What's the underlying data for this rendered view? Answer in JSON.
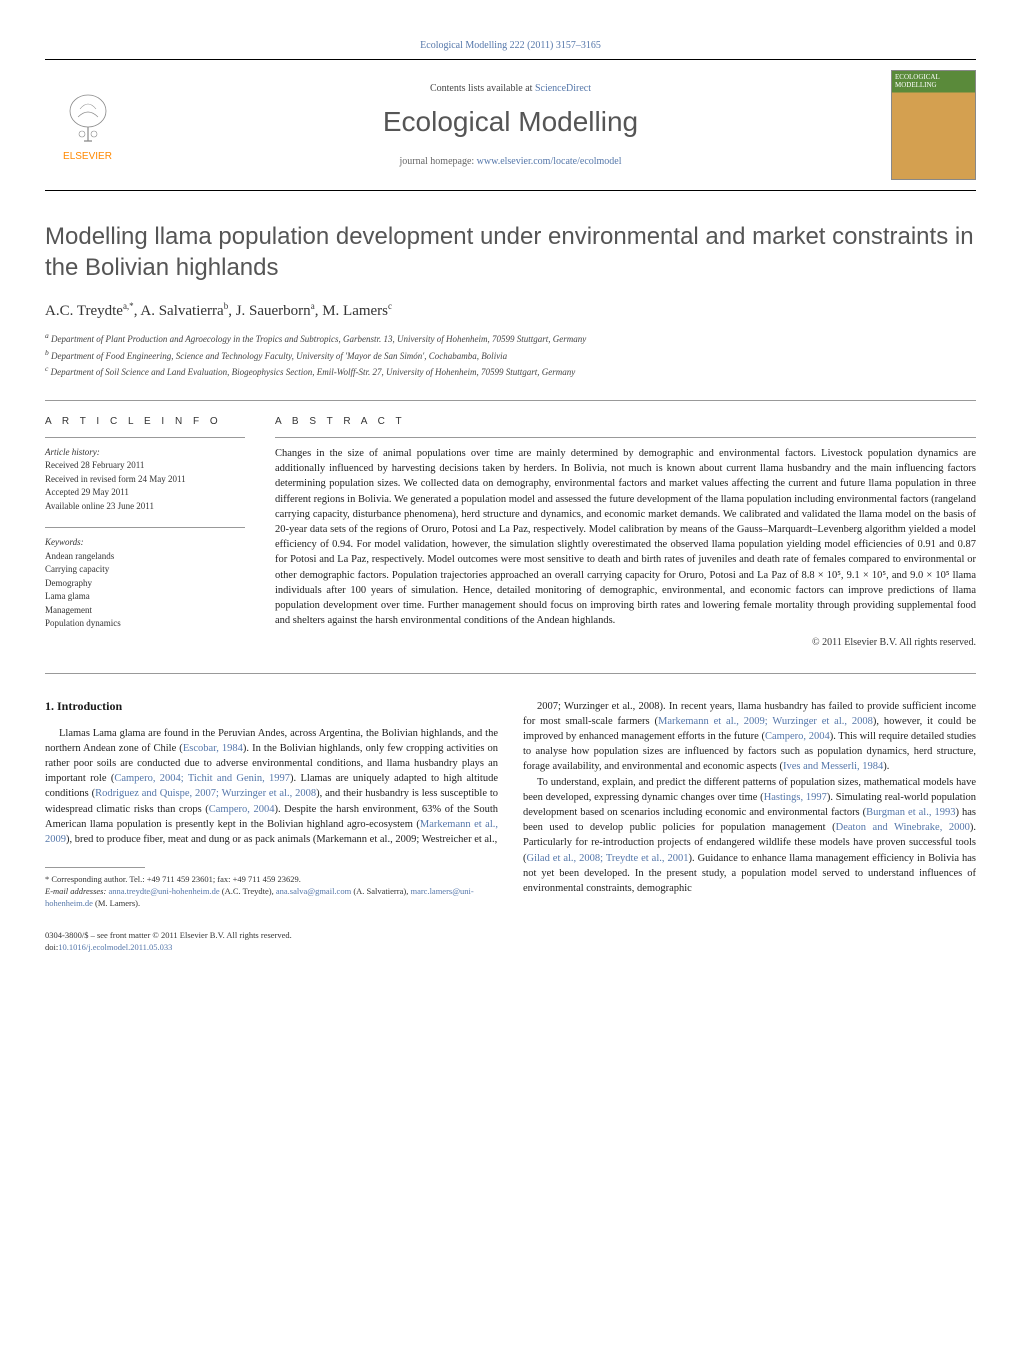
{
  "journal_ref": "Ecological Modelling 222 (2011) 3157–3165",
  "banner": {
    "publisher": "ELSEVIER",
    "contents_prefix": "Contents lists available at ",
    "contents_link": "ScienceDirect",
    "journal_name": "Ecological Modelling",
    "homepage_prefix": "journal homepage: ",
    "homepage_url": "www.elsevier.com/locate/ecolmodel",
    "cover_title": "ECOLOGICAL MODELLING"
  },
  "title": "Modelling llama population development under environmental and market constraints in the Bolivian highlands",
  "authors_html": "A.C. Treydte",
  "author_list": [
    {
      "name": "A.C. Treydte",
      "marks": "a,*"
    },
    {
      "name": "A. Salvatierra",
      "marks": "b"
    },
    {
      "name": "J. Sauerborn",
      "marks": "a"
    },
    {
      "name": "M. Lamers",
      "marks": "c"
    }
  ],
  "affiliations": [
    {
      "mark": "a",
      "text": "Department of Plant Production and Agroecology in the Tropics and Subtropics, Garbenstr. 13, University of Hohenheim, 70599 Stuttgart, Germany"
    },
    {
      "mark": "b",
      "text": "Department of Food Engineering, Science and Technology Faculty, University of 'Mayor de San Simón', Cochabamba, Bolivia"
    },
    {
      "mark": "c",
      "text": "Department of Soil Science and Land Evaluation, Biogeophysics Section, Emil-Wolff-Str. 27, University of Hohenheim, 70599 Stuttgart, Germany"
    }
  ],
  "article_info": {
    "heading": "A R T I C L E   I N F O",
    "history_label": "Article history:",
    "history": [
      "Received 28 February 2011",
      "Received in revised form 24 May 2011",
      "Accepted 29 May 2011",
      "Available online 23 June 2011"
    ],
    "keywords_label": "Keywords:",
    "keywords": [
      "Andean rangelands",
      "Carrying capacity",
      "Demography",
      "Lama glama",
      "Management",
      "Population dynamics"
    ]
  },
  "abstract": {
    "heading": "A B S T R A C T",
    "text": "Changes in the size of animal populations over time are mainly determined by demographic and environmental factors. Livestock population dynamics are additionally influenced by harvesting decisions taken by herders. In Bolivia, not much is known about current llama husbandry and the main influencing factors determining population sizes. We collected data on demography, environmental factors and market values affecting the current and future llama population in three different regions in Bolivia. We generated a population model and assessed the future development of the llama population including environmental factors (rangeland carrying capacity, disturbance phenomena), herd structure and dynamics, and economic market demands. We calibrated and validated the llama model on the basis of 20-year data sets of the regions of Oruro, Potosi and La Paz, respectively. Model calibration by means of the Gauss–Marquardt–Levenberg algorithm yielded a model efficiency of 0.94. For model validation, however, the simulation slightly overestimated the observed llama population yielding model efficiencies of 0.91 and 0.87 for Potosi and La Paz, respectively. Model outcomes were most sensitive to death and birth rates of juveniles and death rate of females compared to environmental or other demographic factors. Population trajectories approached an overall carrying capacity for Oruro, Potosi and La Paz of 8.8 × 10⁵, 9.1 × 10⁵, and 9.0 × 10⁵ llama individuals after 100 years of simulation. Hence, detailed monitoring of demographic, environmental, and economic factors can improve predictions of llama population development over time. Further management should focus on improving birth rates and lowering female mortality through providing supplemental food and shelters against the harsh environmental conditions of the Andean highlands.",
    "copyright": "© 2011 Elsevier B.V. All rights reserved."
  },
  "intro": {
    "heading": "1. Introduction",
    "col1": "Llamas Lama glama are found in the Peruvian Andes, across Argentina, the Bolivian highlands, and the northern Andean zone of Chile (Escobar, 1984). In the Bolivian highlands, only few cropping activities on rather poor soils are conducted due to adverse environmental conditions, and llama husbandry plays an important role (Campero, 2004; Tichit and Genin, 1997). Llamas are uniquely adapted to high altitude conditions (Rodriguez and Quispe, 2007; Wurzinger et al., 2008), and their husbandry is less susceptible to widespread climatic risks than crops (Campero, 2004). Despite the harsh environment, 63% of the South American llama population is presently kept in the Bolivian highland agro-ecosystem (Markemann et al., 2009), bred to produce fiber, meat and dung or as pack animals (Markemann et al., 2009; Westreicher et al.,",
    "col2": "2007; Wurzinger et al., 2008). In recent years, llama husbandry has failed to provide sufficient income for most small-scale farmers (Markemann et al., 2009; Wurzinger et al., 2008), however, it could be improved by enhanced management efforts in the future (Campero, 2004). This will require detailed studies to analyse how population sizes are influenced by factors such as population dynamics, herd structure, forage availability, and environmental and economic aspects (Ives and Messerli, 1984).\n\nTo understand, explain, and predict the different patterns of population sizes, mathematical models have been developed, expressing dynamic changes over time (Hastings, 1997). Simulating real-world population development based on scenarios including economic and environmental factors (Burgman et al., 1993) has been used to develop public policies for population management (Deaton and Winebrake, 2000). Particularly for re-introduction projects of endangered wildlife these models have proven successful tools (Gilad et al., 2008; Treydte et al., 2001). Guidance to enhance llama management efficiency in Bolivia has not yet been developed. In the present study, a population model served to understand influences of environmental constraints, demographic"
  },
  "footnotes": {
    "corresponding": "* Corresponding author. Tel.: +49 711 459 23601; fax: +49 711 459 23629.",
    "emails_label": "E-mail addresses:",
    "emails": [
      {
        "addr": "anna.treydte@uni-hohenheim.de",
        "who": "(A.C. Treydte),"
      },
      {
        "addr": "ana.salva@gmail.com",
        "who": "(A. Salvatierra),"
      },
      {
        "addr": "marc.lamers@uni-hohenheim.de",
        "who": "(M. Lamers)."
      }
    ]
  },
  "bottom": {
    "issn": "0304-3800/$ – see front matter © 2011 Elsevier B.V. All rights reserved.",
    "doi_label": "doi:",
    "doi": "10.1016/j.ecolmodel.2011.05.033"
  },
  "colors": {
    "link": "#5577aa",
    "publisher": "#ff8800",
    "text": "#222",
    "heading": "#555",
    "cover_top": "#5a8a3a",
    "cover_bottom": "#d4a050"
  }
}
